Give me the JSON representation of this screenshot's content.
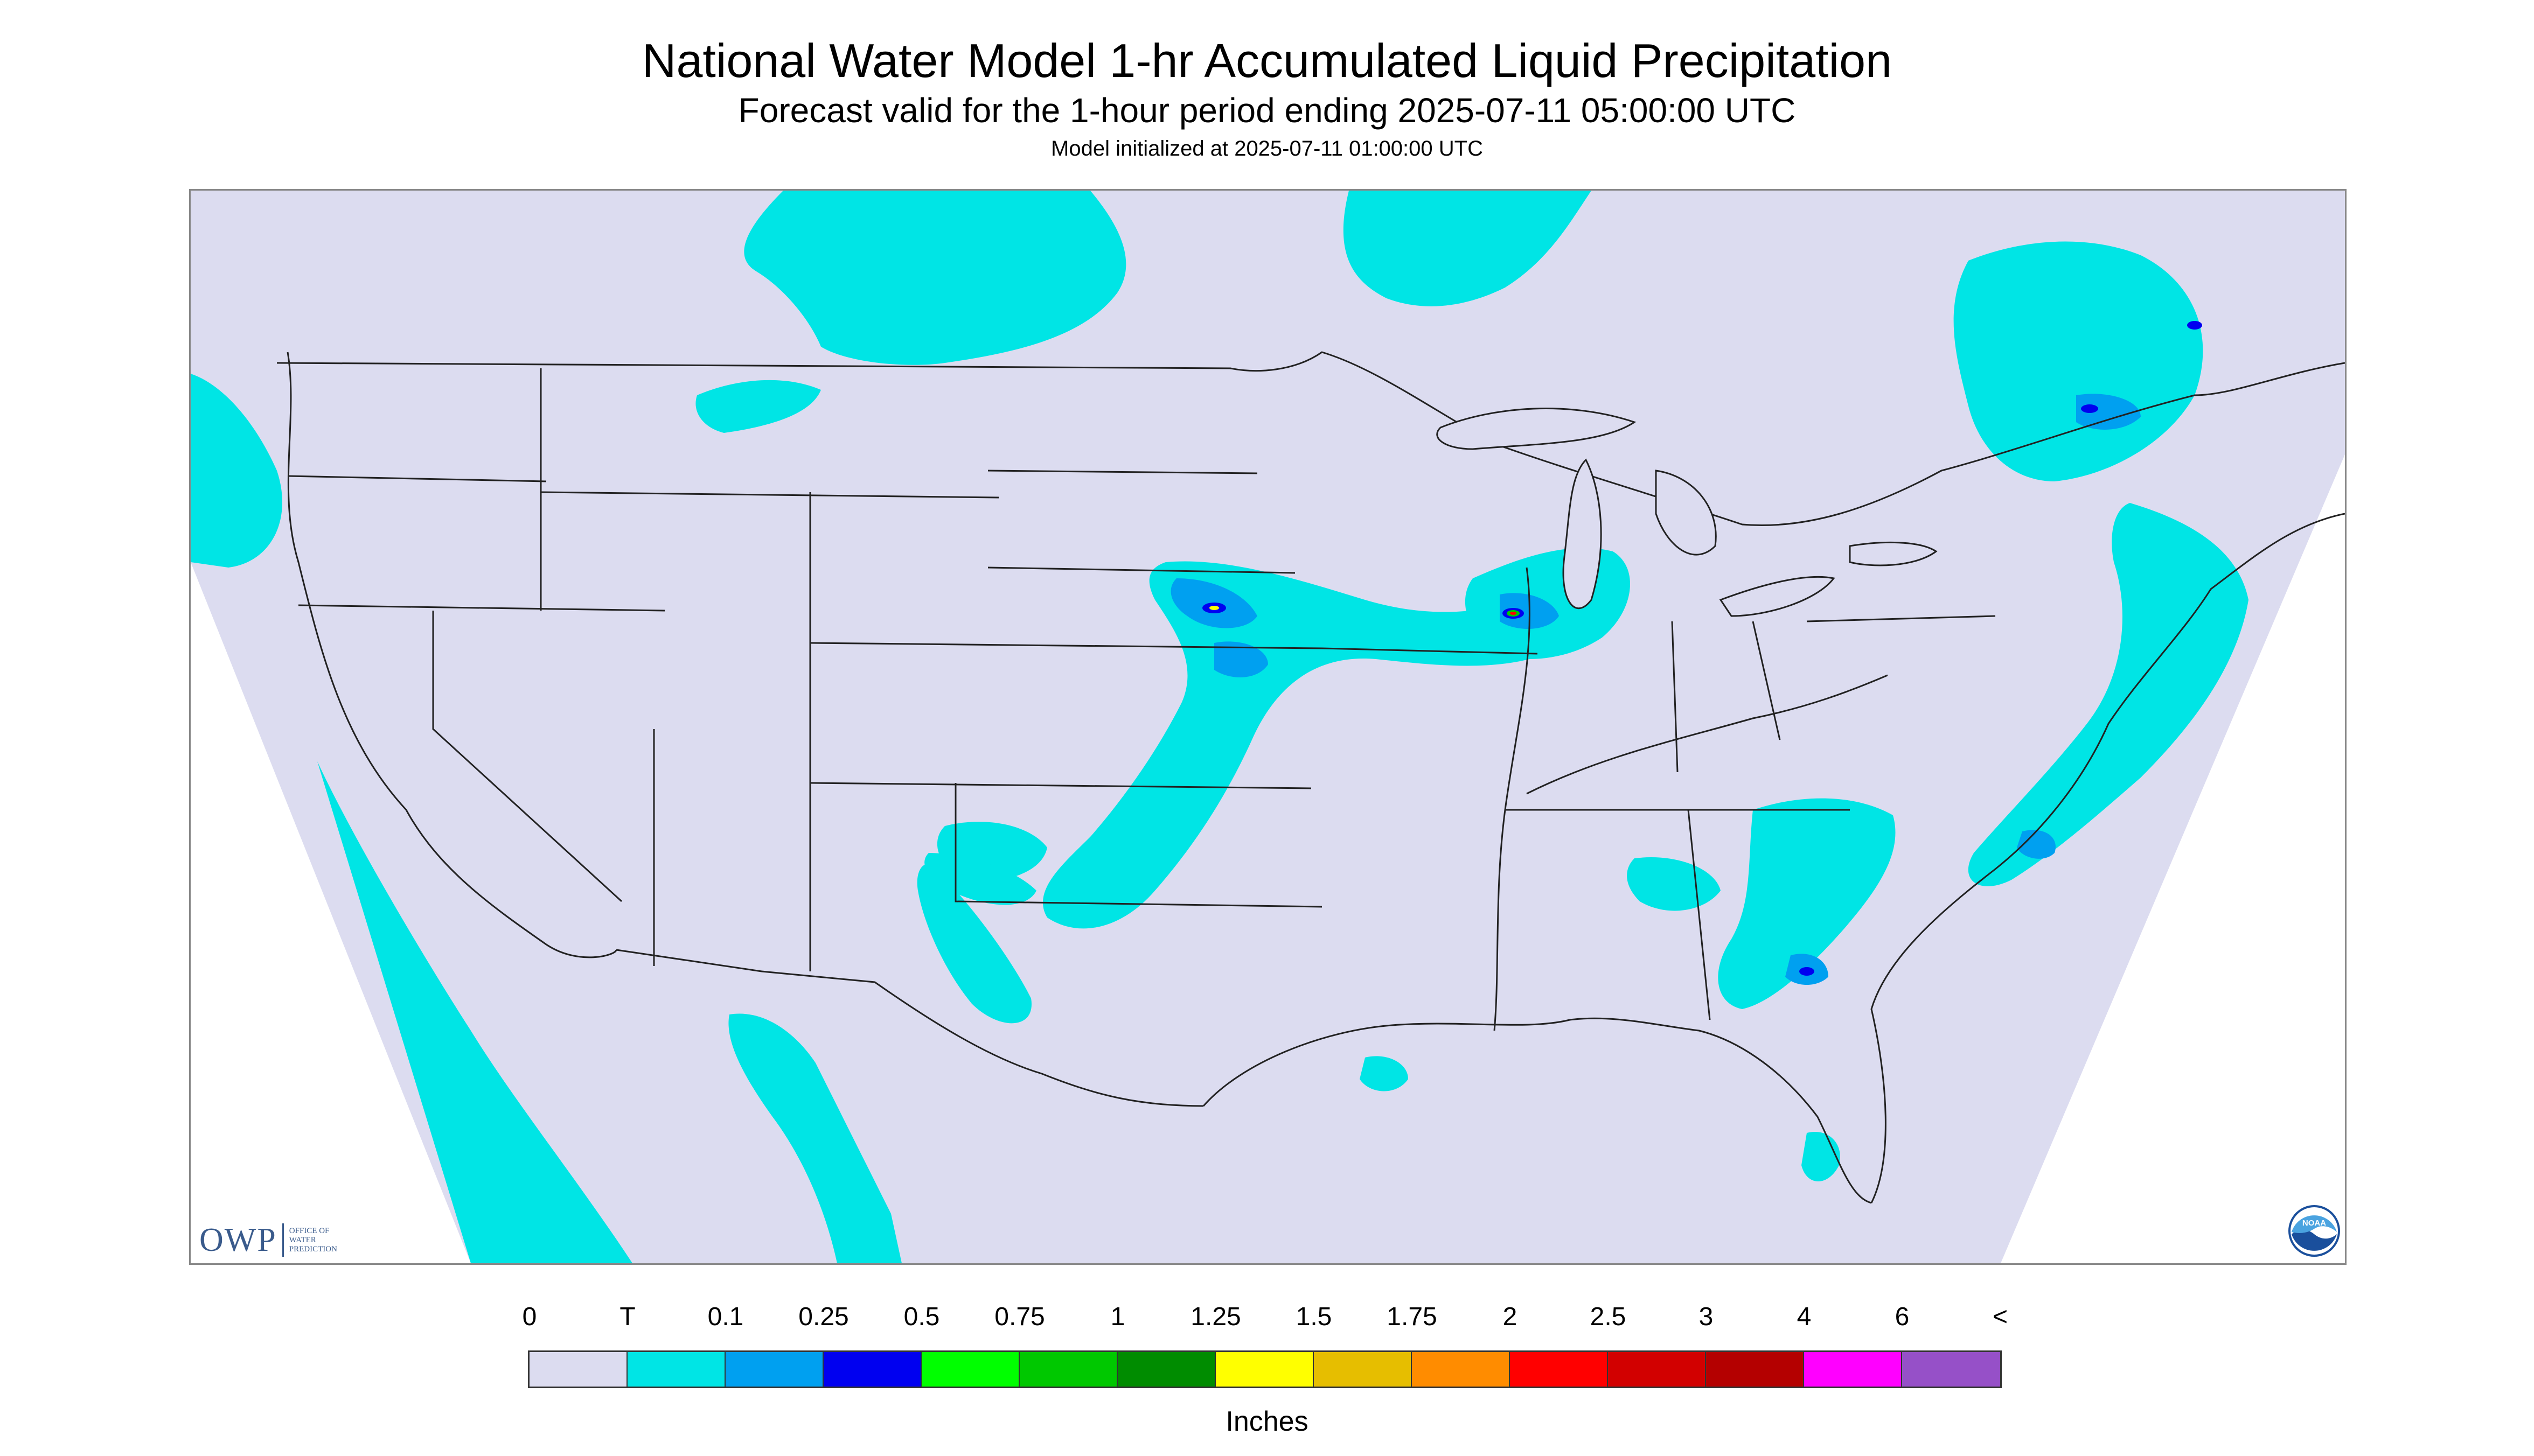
{
  "title": "National Water Model 1-hr Accumulated Liquid Precipitation",
  "subtitle": "Forecast valid for the 1-hour period ending 2025-07-11 05:00:00 UTC",
  "init_line": "Model initialized at 2025-07-11 01:00:00 UTC",
  "map": {
    "background_color": "#dcdcf0",
    "boundary_color": "#222222",
    "outside_domain_color": "#ffffff"
  },
  "logos": {
    "owp": {
      "mark": "OWP",
      "text_lines": [
        "OFFICE OF",
        "WATER",
        "PREDICTION"
      ]
    },
    "noaa": {
      "text": "NOAA",
      "icon": "noaa-logo-icon"
    }
  },
  "legend": {
    "labels": [
      "0",
      "T",
      "0.1",
      "0.25",
      "0.5",
      "0.75",
      "1",
      "1.25",
      "1.5",
      "1.75",
      "2",
      "2.5",
      "3",
      "4",
      "6",
      "<"
    ],
    "colors": [
      "#dcdcf0",
      "#00e5e5",
      "#00a0f0",
      "#0000f0",
      "#00ff00",
      "#00c800",
      "#008c00",
      "#ffff00",
      "#e6be00",
      "#ff8c00",
      "#ff0000",
      "#d20000",
      "#b40000",
      "#ff00ff",
      "#9650c8"
    ],
    "units": "Inches"
  }
}
